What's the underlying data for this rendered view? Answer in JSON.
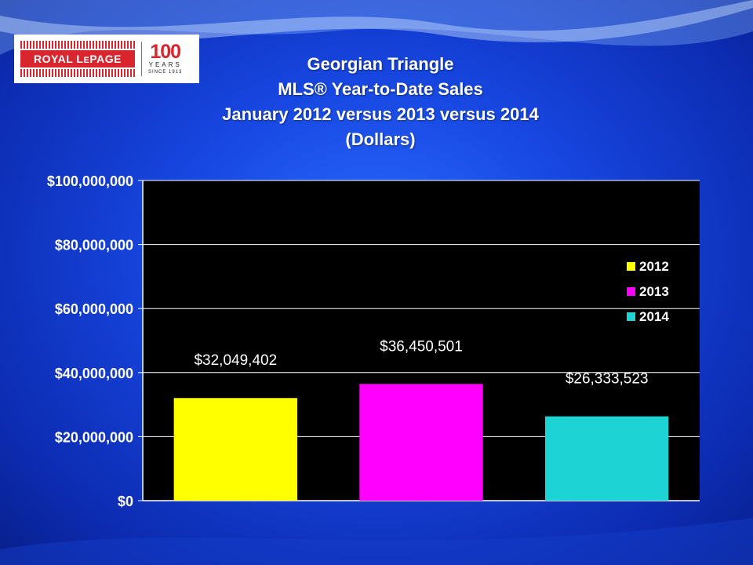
{
  "logo": {
    "brand_main": "ROYAL L",
    "brand_small": "E",
    "brand_end": "PAGE",
    "number": "100",
    "years": "YEARS",
    "since": "SINCE 1913"
  },
  "chart_data": {
    "type": "bar",
    "title_lines": [
      "Georgian Triangle",
      "MLS® Year-to-Date Sales",
      "January 2012 versus 2013 versus 2014",
      "(Dollars)"
    ],
    "categories": [
      "2012",
      "2013",
      "2014"
    ],
    "values": [
      32049402,
      36450501,
      26333523
    ],
    "data_labels": [
      "$32,049,402",
      "$36,450,501",
      "$26,333,523"
    ],
    "colors": [
      "#ffff00",
      "#ff00ff",
      "#1ed3d3"
    ],
    "y_ticks": [
      0,
      20000000,
      40000000,
      60000000,
      80000000,
      100000000
    ],
    "y_tick_labels": [
      "$0",
      "$20,000,000",
      "$40,000,000",
      "$60,000,000",
      "$80,000,000",
      "$100,000,000"
    ],
    "ylim": [
      0,
      100000000
    ],
    "legend": [
      "2012",
      "2013",
      "2014"
    ],
    "legend_position": "right",
    "grid": true,
    "plot_background": "#000000"
  }
}
